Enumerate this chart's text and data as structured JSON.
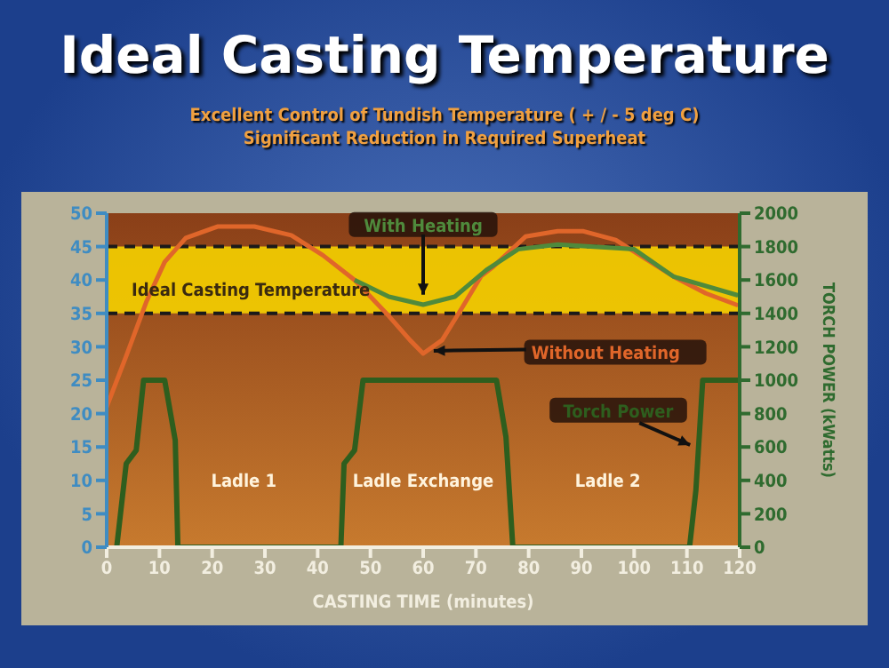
{
  "chart_data": {
    "type": "line",
    "title": "Ideal Casting Temperature",
    "subtitle": "Excellent Control of Tundish Temperature ( + / - 5 deg C)\nSignificant Reduction in Required Superheat",
    "xlabel": "CASTING TIME (minutes)",
    "y2label": "TORCH POWER (kWatts)",
    "series": [
      {
        "name": "Without Heating",
        "color": "#e0662a",
        "x": [
          0,
          3.7,
          7.5,
          11,
          15,
          21,
          28,
          35,
          41,
          47,
          53.5,
          57.5,
          60,
          63.6,
          67.5,
          71,
          73.3,
          79.4,
          85.5,
          90.4,
          96.5,
          101.5,
          107.5,
          113.6,
          119.7
        ],
        "values": [
          21,
          28.6,
          36.7,
          42.7,
          46.3,
          48,
          48,
          46.7,
          43.7,
          40,
          34.6,
          31,
          29,
          31,
          36,
          40.6,
          42,
          46.5,
          47.3,
          47.3,
          46,
          43.5,
          40.5,
          38,
          36.2
        ]
      },
      {
        "name": "With Heating",
        "color": "#4f8a3c",
        "x": [
          47,
          53.5,
          60,
          66,
          72,
          78,
          85.5,
          100,
          107.5,
          119.7
        ],
        "values": [
          40,
          37.5,
          36.3,
          37.5,
          41.5,
          44.6,
          45.3,
          44.6,
          40.5,
          37.7
        ]
      },
      {
        "name": "Torch Power",
        "color": "#2e5e1e",
        "axis": "y2",
        "x": [
          1.9,
          3.7,
          5.6,
          7,
          11,
          13,
          13.5,
          44.4,
          45,
          47,
          48.6,
          73.9,
          75.7,
          77,
          110.5,
          111.7,
          113,
          119.7
        ],
        "values": [
          0,
          500,
          580,
          1000,
          1000,
          640,
          0,
          0,
          500,
          580,
          1000,
          1000,
          660,
          0,
          0,
          340,
          1000,
          1000
        ]
      }
    ],
    "xlim": [
      0,
      120
    ],
    "xticks": [
      0,
      10,
      20,
      30,
      40,
      50,
      60,
      70,
      80,
      90,
      100,
      110,
      120
    ],
    "ylim": [
      0,
      50
    ],
    "yticks": [
      0,
      5,
      10,
      15,
      20,
      25,
      30,
      35,
      40,
      45,
      50
    ],
    "y2lim": [
      0,
      2000
    ],
    "y2ticks": [
      0,
      200,
      400,
      600,
      800,
      1000,
      1200,
      1400,
      1600,
      1800,
      2000
    ],
    "bands": [
      {
        "axis": "y",
        "from": 35,
        "to": 45,
        "label": "Ideal Casting Temperature",
        "color": "#f5d000"
      }
    ],
    "ref_lines": [
      {
        "axis": "y",
        "value": 35,
        "line_style": "dashed",
        "color": "#1a1a1a"
      },
      {
        "axis": "y",
        "value": 45,
        "line_style": "dashed",
        "color": "#1a1a1a"
      }
    ],
    "annotations": [
      "Ladle 1",
      "Ladle Exchange",
      "Ladle 2"
    ],
    "grid": false,
    "marker": "none",
    "line_style": "solid"
  }
}
